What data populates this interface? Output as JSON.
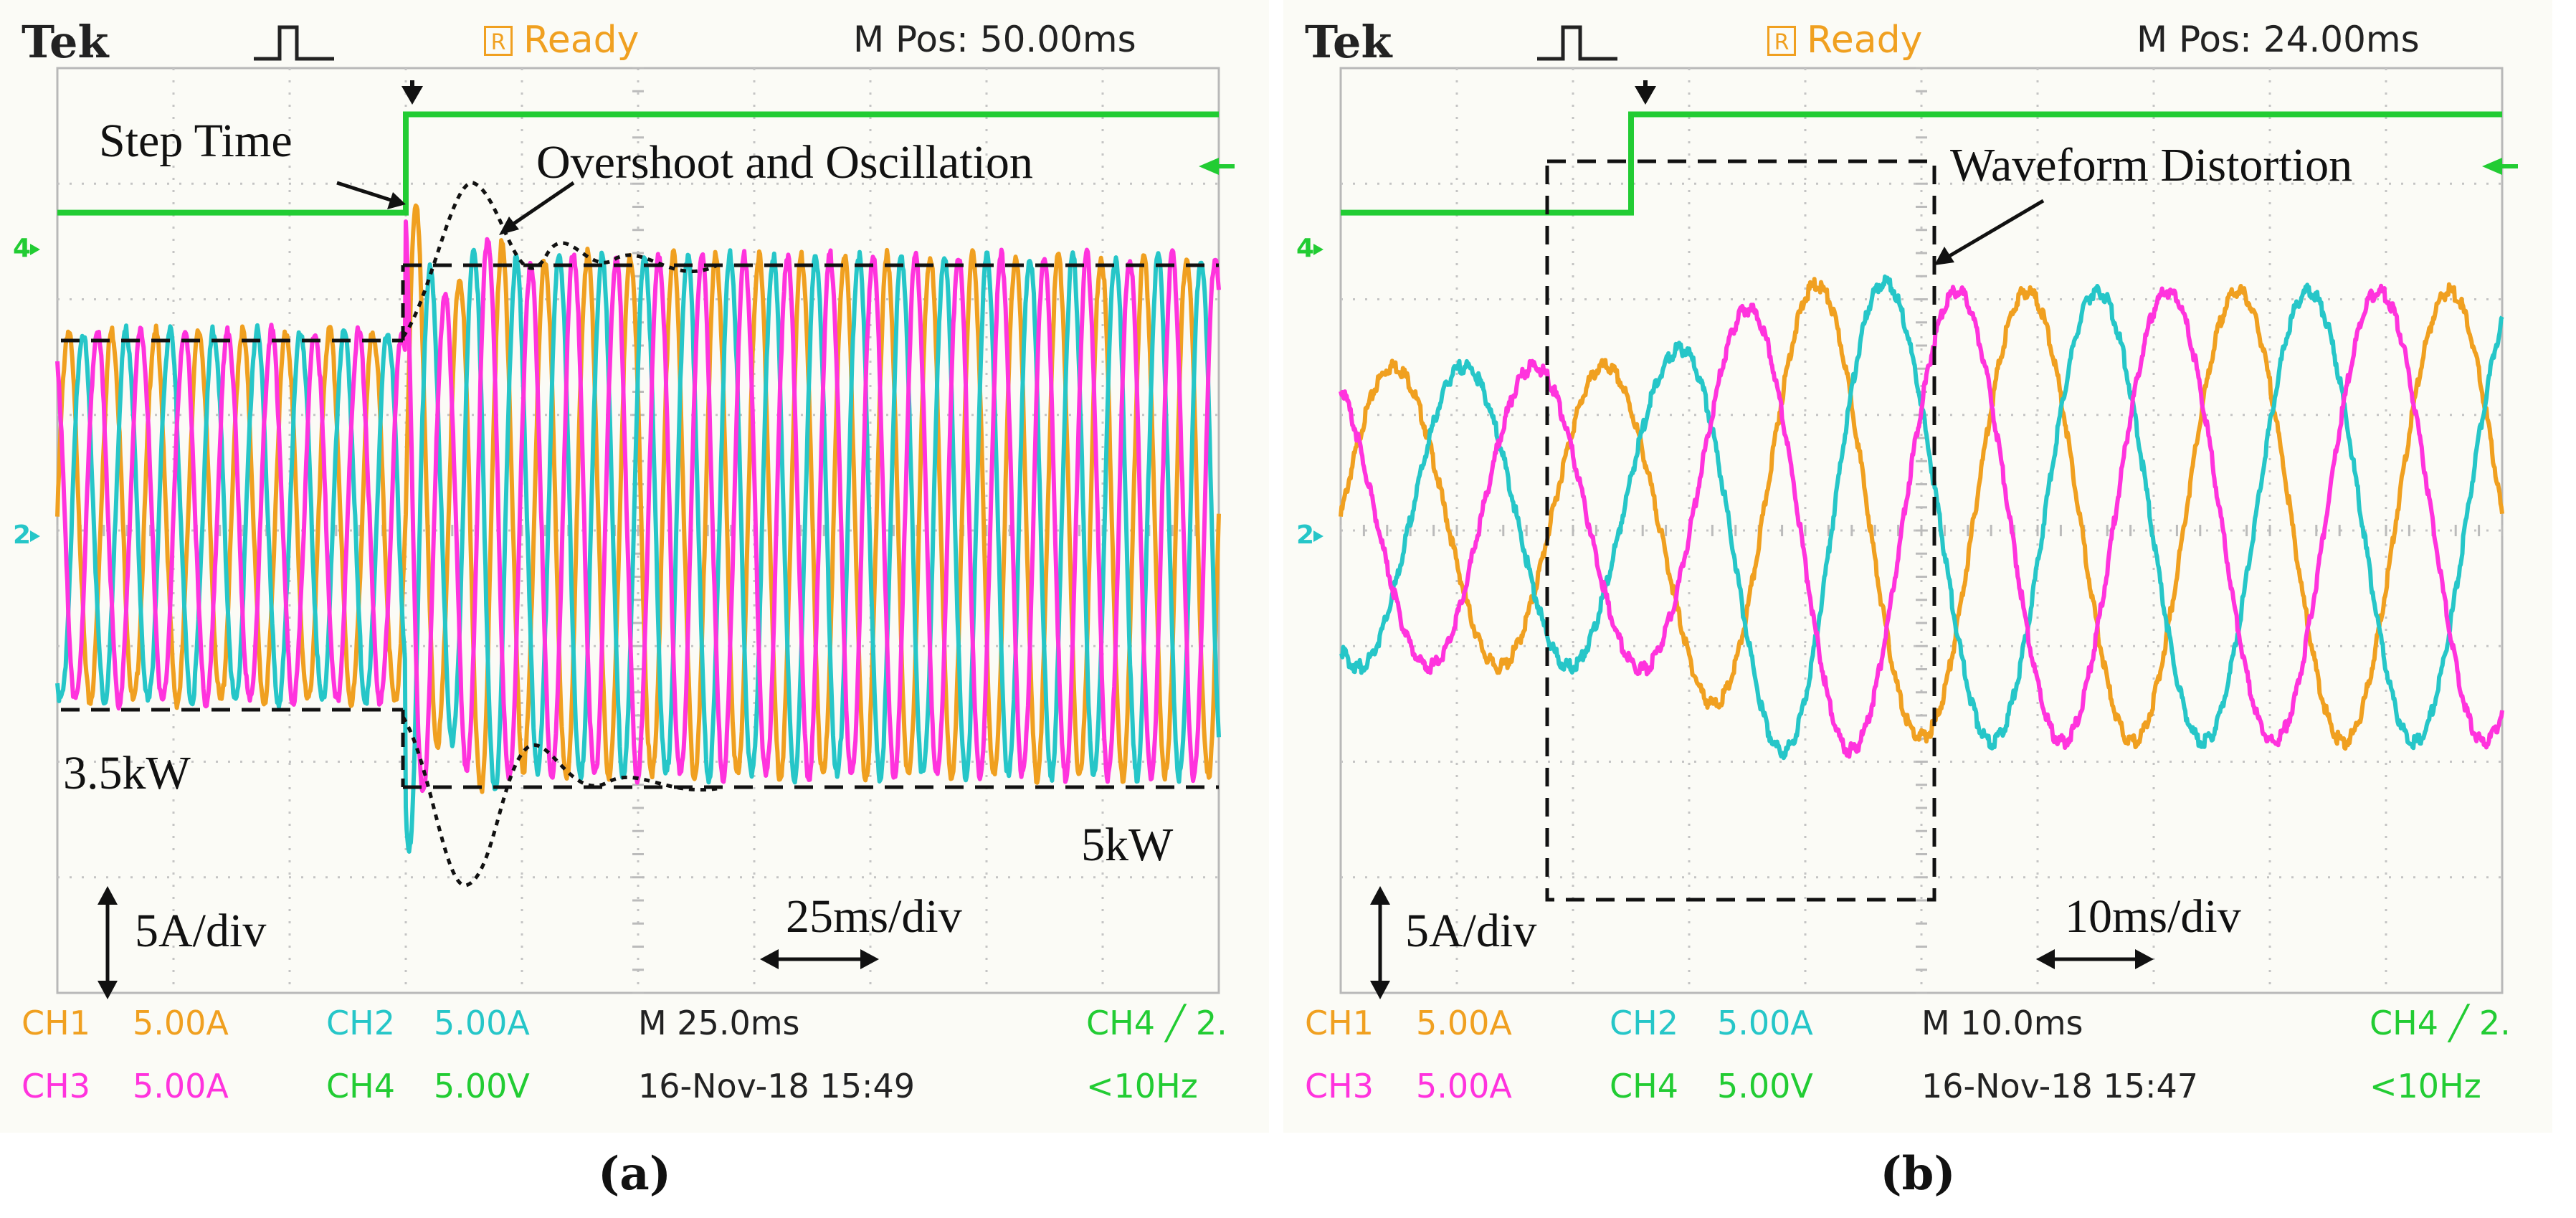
{
  "chart_data": [
    {
      "type": "line",
      "title": "Tek Ready",
      "header": {
        "brand": "Tek",
        "status_badge": "R",
        "status": "Ready",
        "mpos": "M Pos: 50.00ms"
      },
      "xlabel": "time (25ms/div)",
      "ylabel": "phase current (5A/div)",
      "x_divisions": 10,
      "y_divisions": 8,
      "step_fraction": 0.3,
      "pre_step_cycles": 8,
      "post_step_cycles": 19,
      "series": [
        {
          "name": "CH1",
          "color": "#f0a020",
          "phase_deg": 0,
          "amplitude_before_div": 1.6,
          "amplitude_after_div": 2.25
        },
        {
          "name": "CH2",
          "color": "#26c6c8",
          "phase_deg": -120,
          "amplitude_before_div": 1.6,
          "amplitude_after_div": 2.25
        },
        {
          "name": "CH3",
          "color": "#ff33dd",
          "phase_deg": 120,
          "amplitude_before_div": 1.6,
          "amplitude_after_div": 2.25
        },
        {
          "name": "CH4 (step signal)",
          "color": "#22cc33",
          "low_div": 2.6,
          "high_div": 3.45
        }
      ],
      "annotations": {
        "step_time": "Step Time",
        "overshoot": "Overshoot and Oscillation",
        "before": "3.5kW",
        "after": "5kW",
        "vscale": "5A/div",
        "hscale": "25ms/div"
      },
      "readouts": {
        "ch1": "CH1",
        "ch1_scale": "5.00A",
        "ch2": "CH2",
        "ch2_scale": "5.00A",
        "ch3": "CH3",
        "ch3_scale": "5.00A",
        "ch4": "CH4",
        "ch4_scale": "5.00V",
        "timebase": "M 25.0ms",
        "datetime": "16-Nov-18 15:49",
        "trigger": "CH4 ╱ 2.",
        "freq": "<10Hz"
      },
      "caption": "(a)"
    },
    {
      "type": "line",
      "title": "Tek Ready",
      "header": {
        "brand": "Tek",
        "status_badge": "R",
        "status": "Ready",
        "mpos": "M Pos: 24.00ms"
      },
      "xlabel": "time (10ms/div)",
      "ylabel": "phase current (5A/div)",
      "x_divisions": 10,
      "y_divisions": 8,
      "step_fraction": 0.25,
      "cycles_total": 5.5,
      "series": [
        {
          "name": "CH1",
          "color": "#f0a020",
          "phase_deg": 0,
          "amplitude_before_div": 1.3,
          "amplitude_after_div": 1.95
        },
        {
          "name": "CH2",
          "color": "#26c6c8",
          "phase_deg": -120,
          "amplitude_before_div": 1.3,
          "amplitude_after_div": 1.95
        },
        {
          "name": "CH3",
          "color": "#ff33dd",
          "phase_deg": 120,
          "amplitude_before_div": 1.3,
          "amplitude_after_div": 1.95
        },
        {
          "name": "CH4 (step signal)",
          "color": "#22cc33",
          "low_div": 2.6,
          "high_div": 3.45
        }
      ],
      "annotations": {
        "distortion": "Waveform Distortion",
        "vscale": "5A/div",
        "hscale": "10ms/div"
      },
      "readouts": {
        "ch1": "CH1",
        "ch1_scale": "5.00A",
        "ch2": "CH2",
        "ch2_scale": "5.00A",
        "ch3": "CH3",
        "ch3_scale": "5.00A",
        "ch4": "CH4",
        "ch4_scale": "5.00V",
        "timebase": "M 10.0ms",
        "datetime": "16-Nov-18 15:47",
        "trigger": "CH4 ╱ 2.",
        "freq": "<10Hz"
      },
      "caption": "(b)"
    }
  ]
}
